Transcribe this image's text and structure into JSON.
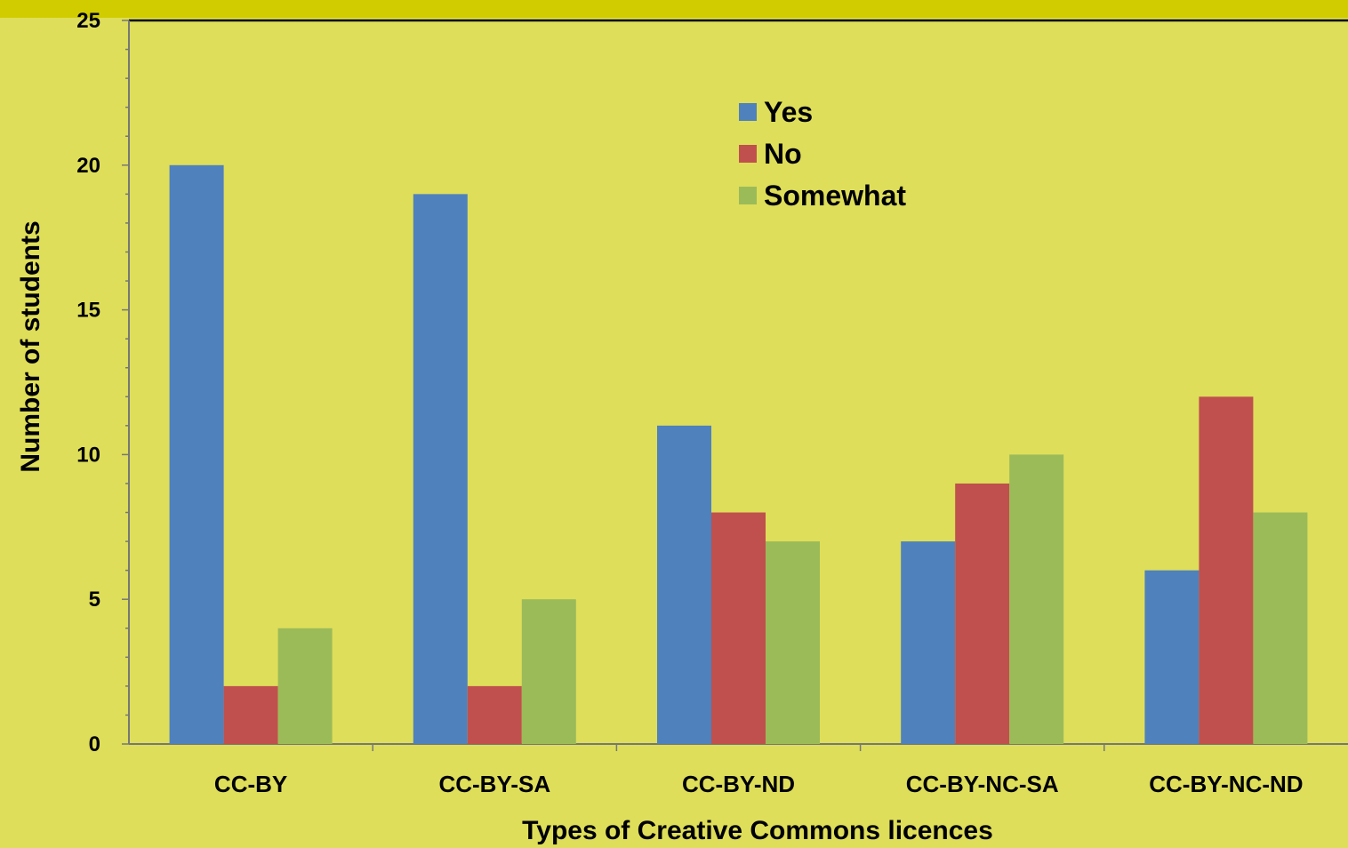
{
  "chart_data": {
    "type": "bar",
    "title": "",
    "xlabel": "Types of Creative Commons licences",
    "ylabel": "Number of students",
    "ylim": [
      0,
      25
    ],
    "yticks": [
      0,
      5,
      10,
      15,
      20,
      25
    ],
    "categories": [
      "CC-BY",
      "CC-BY-SA",
      "CC-BY-ND",
      "CC-BY-NC-SA",
      "CC-BY-NC-ND"
    ],
    "series": [
      {
        "name": "Yes",
        "color": "#4f81bd",
        "values": [
          20,
          19,
          11,
          7,
          6
        ]
      },
      {
        "name": "No",
        "color": "#c0504d",
        "values": [
          2,
          2,
          8,
          9,
          12
        ]
      },
      {
        "name": "Somewhat",
        "color": "#9bbb59",
        "values": [
          4,
          5,
          7,
          10,
          8
        ]
      }
    ],
    "legend_position": "top-center",
    "grid": false,
    "colors": {
      "background": "#dede5a",
      "top_band": "#d1cc00"
    }
  }
}
